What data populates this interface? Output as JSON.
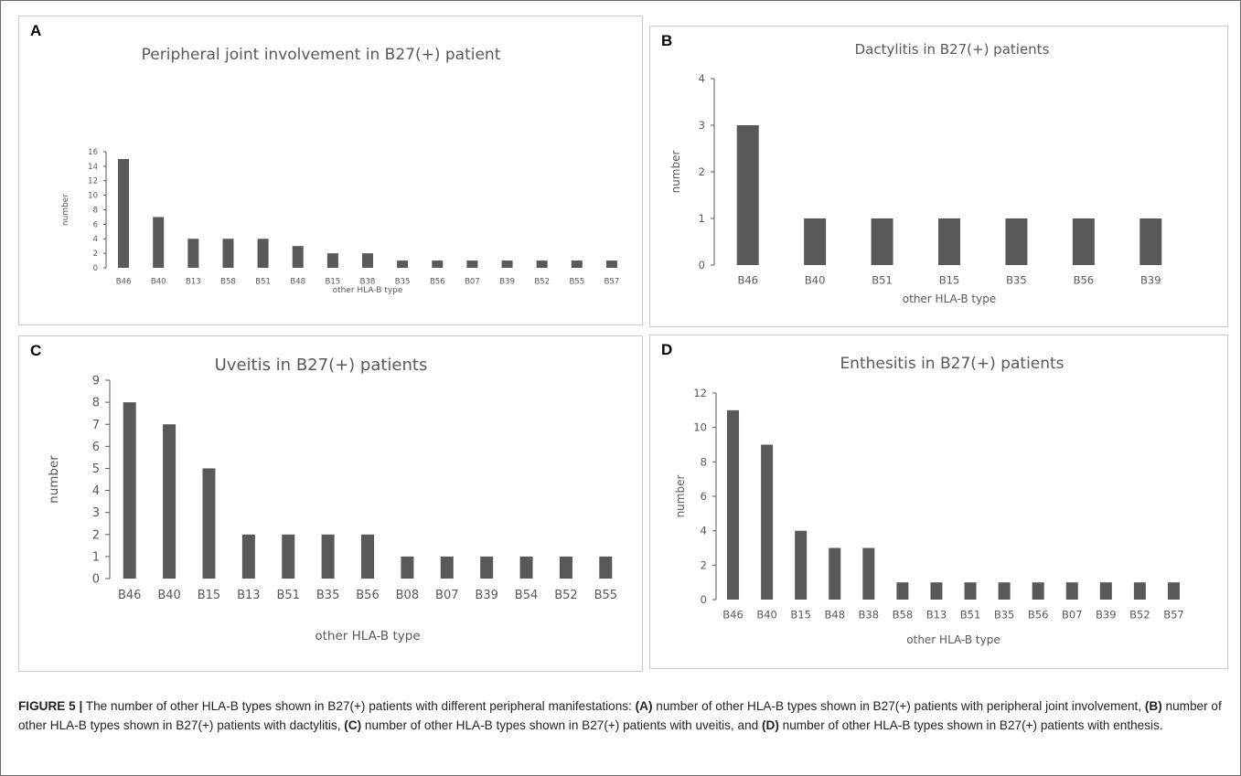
{
  "panels": [
    {
      "letter": "A",
      "chart_data": {
        "type": "bar",
        "title": "Peripheral joint involvement in B27(+) patient",
        "xlabel": "other HLA-B type",
        "ylabel": "number",
        "categories": [
          "B46",
          "B40",
          "B13",
          "B58",
          "B51",
          "B48",
          "B15",
          "B38",
          "B35",
          "B56",
          "B07",
          "B39",
          "B52",
          "B55",
          "B57"
        ],
        "values": [
          15,
          7,
          4,
          4,
          4,
          3,
          2,
          2,
          1,
          1,
          1,
          1,
          1,
          1,
          1
        ],
        "ylim": [
          0,
          16
        ],
        "yticks": [
          0,
          2,
          4,
          6,
          8,
          10,
          12,
          14,
          16
        ]
      }
    },
    {
      "letter": "B",
      "chart_data": {
        "type": "bar",
        "title": "Dactylitis in B27(+) patients",
        "xlabel": "other HLA-B type",
        "ylabel": "number",
        "categories": [
          "B46",
          "B40",
          "B51",
          "B15",
          "B35",
          "B56",
          "B39"
        ],
        "values": [
          3,
          1,
          1,
          1,
          1,
          1,
          1
        ],
        "ylim": [
          0,
          4
        ],
        "yticks": [
          0,
          1,
          2,
          3,
          4
        ]
      }
    },
    {
      "letter": "C",
      "chart_data": {
        "type": "bar",
        "title": "Uveitis in B27(+) patients",
        "xlabel": "other HLA-B type",
        "ylabel": "number",
        "categories": [
          "B46",
          "B40",
          "B15",
          "B13",
          "B51",
          "B35",
          "B56",
          "B08",
          "B07",
          "B39",
          "B54",
          "B52",
          "B55"
        ],
        "values": [
          8,
          7,
          5,
          2,
          2,
          2,
          2,
          1,
          1,
          1,
          1,
          1,
          1
        ],
        "ylim": [
          0,
          9
        ],
        "yticks": [
          0,
          1,
          2,
          3,
          4,
          5,
          6,
          7,
          8,
          9
        ]
      }
    },
    {
      "letter": "D",
      "chart_data": {
        "type": "bar",
        "title": "Enthesitis in B27(+) patients",
        "xlabel": "other HLA-B type",
        "ylabel": "number",
        "categories": [
          "B46",
          "B40",
          "B15",
          "B48",
          "B38",
          "B58",
          "B13",
          "B51",
          "B35",
          "B56",
          "B07",
          "B39",
          "B52",
          "B57"
        ],
        "values": [
          11,
          9,
          4,
          3,
          3,
          1,
          1,
          1,
          1,
          1,
          1,
          1,
          1,
          1
        ],
        "ylim": [
          0,
          12
        ],
        "yticks": [
          0,
          2,
          4,
          6,
          8,
          10,
          12
        ]
      }
    }
  ],
  "caption": {
    "figure_label": "FIGURE 5 |",
    "intro": " The number of other HLA-B types shown in B27(+) patients with different peripheral manifestations: ",
    "a_label": "(A)",
    "a_text": " number of other HLA-B types shown in B27(+) patients with peripheral joint involvement, ",
    "b_label": "(B)",
    "b_text": " number of other HLA-B types shown in B27(+) patients with dactylitis, ",
    "c_label": "(C)",
    "c_text": " number of other HLA-B types shown in B27(+) patients with uveitis, and ",
    "d_label": "(D)",
    "d_text": " number of other HLA-B types shown in B27(+) patients with enthesis."
  },
  "colors": {
    "bar": "#595959",
    "axis": "#595959",
    "text": "#595959"
  }
}
